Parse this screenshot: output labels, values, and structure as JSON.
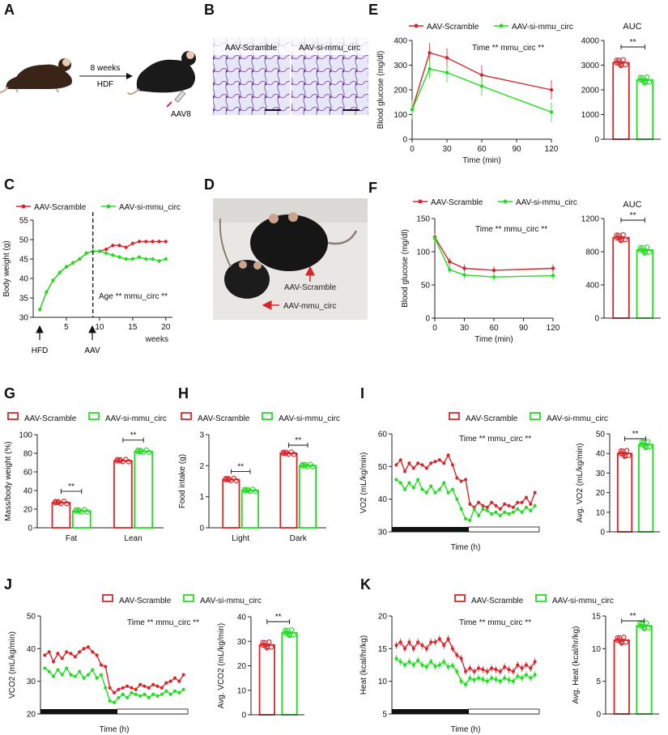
{
  "colors": {
    "scramble": "#d7262b",
    "si": "#22dd22",
    "axis": "#222222"
  },
  "panel_letters": [
    "A",
    "B",
    "C",
    "D",
    "E",
    "F",
    "G",
    "H",
    "I",
    "J",
    "K"
  ],
  "panel_a": {
    "duration": "8 weeks",
    "diet": "HDF",
    "vector": "AAV8"
  },
  "panel_b": {
    "labels": [
      "AAV-Scramble",
      "AAV-si-mmu_circ"
    ]
  },
  "panel_d": {
    "labels": [
      "AAV-Scramble",
      "AAV-mmu_circ"
    ]
  },
  "legend": {
    "scramble": "AAV-Scramble",
    "si": "AAV-si-mmu_circ"
  },
  "auc_title": "AUC",
  "stats": {
    "c": "Age ** mmu_circ **",
    "time": "Time ** mmu_circ **",
    "sig": "**"
  },
  "chart_data": [
    {
      "id": "C",
      "type": "line",
      "xlabel": "weeks",
      "ylabel": "Body weight (g)",
      "xlim": [
        0,
        21
      ],
      "ylim": [
        30,
        55
      ],
      "xticks": [
        5,
        10,
        15,
        20
      ],
      "yticks": [
        30,
        35,
        40,
        45,
        50,
        55
      ],
      "annotations": [
        "HFD",
        "AAV"
      ],
      "vline_x": 9,
      "series": [
        {
          "name": "AAV-Scramble",
          "x": [
            1,
            2,
            3,
            4,
            5,
            6,
            7,
            8,
            9,
            10,
            11,
            12,
            13,
            14,
            15,
            16,
            17,
            18,
            19,
            20
          ],
          "values": [
            32,
            36.5,
            39.5,
            41.5,
            43,
            44,
            45,
            46.5,
            47,
            47,
            47.5,
            48.5,
            48.5,
            48,
            49,
            49.5,
            49.5,
            49.5,
            49.5,
            49.5
          ]
        },
        {
          "name": "AAV-si-mmu_circ",
          "x": [
            1,
            2,
            3,
            4,
            5,
            6,
            7,
            8,
            9,
            10,
            11,
            12,
            13,
            14,
            15,
            16,
            17,
            18,
            19,
            20
          ],
          "values": [
            32,
            36.5,
            39.5,
            41.5,
            43,
            44,
            45,
            46.5,
            47,
            47,
            46.5,
            46,
            45.5,
            45,
            45,
            45.5,
            45,
            45,
            44.5,
            45
          ]
        }
      ]
    },
    {
      "id": "E",
      "type": "line",
      "xlabel": "Time (min)",
      "ylabel": "Blood glucose (mg/dl)",
      "xlim": [
        0,
        120
      ],
      "ylim": [
        0,
        400
      ],
      "xticks": [
        0,
        30,
        60,
        90,
        120
      ],
      "yticks": [
        0,
        100,
        200,
        300,
        400
      ],
      "series": [
        {
          "name": "AAV-Scramble",
          "x": [
            0,
            15,
            30,
            60,
            120
          ],
          "values": [
            120,
            350,
            330,
            260,
            200
          ]
        },
        {
          "name": "AAV-si-mmu_circ",
          "x": [
            0,
            15,
            30,
            60,
            120
          ],
          "values": [
            120,
            285,
            270,
            215,
            110
          ]
        }
      ]
    },
    {
      "id": "E-AUC",
      "type": "bar",
      "title": "AUC",
      "ylim": [
        0,
        4000
      ],
      "yticks": [
        0,
        1000,
        2000,
        3000,
        4000
      ],
      "categories": [
        "AAV-Scramble",
        "AAV-si-mmu_circ"
      ],
      "values": [
        3100,
        2400
      ]
    },
    {
      "id": "F",
      "type": "line",
      "xlabel": "Time (min)",
      "ylabel": "Blood glucose (mg/dl)",
      "xlim": [
        0,
        120
      ],
      "ylim": [
        0,
        150
      ],
      "xticks": [
        0,
        30,
        60,
        90,
        120
      ],
      "yticks": [
        0,
        50,
        100,
        150
      ],
      "series": [
        {
          "name": "AAV-Scramble",
          "x": [
            0,
            15,
            30,
            60,
            120
          ],
          "values": [
            122,
            85,
            75,
            72,
            75
          ]
        },
        {
          "name": "AAV-si-mmu_circ",
          "x": [
            0,
            15,
            30,
            60,
            120
          ],
          "values": [
            120,
            73,
            65,
            62,
            64
          ]
        }
      ]
    },
    {
      "id": "F-AUC",
      "type": "bar",
      "title": "AUC",
      "ylim": [
        0,
        1200
      ],
      "yticks": [
        0,
        400,
        800,
        1200
      ],
      "categories": [
        "AAV-Scramble",
        "AAV-si-mmu_circ"
      ],
      "values": [
        970,
        820
      ]
    },
    {
      "id": "G",
      "type": "bar",
      "ylabel": "Mass/body weight (%)",
      "ylim": [
        0,
        100
      ],
      "yticks": [
        0,
        20,
        40,
        60,
        80,
        100
      ],
      "categories": [
        "Fat",
        "Lean"
      ],
      "series": [
        {
          "name": "AAV-Scramble",
          "values": [
            27,
            72
          ]
        },
        {
          "name": "AAV-si-mmu_circ",
          "values": [
            18,
            82
          ]
        }
      ]
    },
    {
      "id": "H",
      "type": "bar",
      "ylabel": "Food intake (g)",
      "ylim": [
        0,
        3
      ],
      "yticks": [
        0,
        1,
        2,
        3
      ],
      "categories": [
        "Light",
        "Dark"
      ],
      "series": [
        {
          "name": "AAV-Scramble",
          "values": [
            1.55,
            2.4
          ]
        },
        {
          "name": "AAV-si-mmu_circ",
          "values": [
            1.2,
            2.0
          ]
        }
      ]
    },
    {
      "id": "I",
      "type": "line",
      "xlabel": "Time (h)",
      "ylabel": "VO2 (mL/kg/min)",
      "ylim": [
        30,
        60
      ],
      "yticks": [
        30,
        40,
        50,
        60
      ],
      "series": [
        {
          "name": "AAV-Scramble",
          "values": [
            50.5,
            52,
            48.5,
            51,
            49.5,
            51,
            50.5,
            49.5,
            51,
            51.5,
            52,
            51,
            53.5,
            50.5,
            46.5,
            45.5,
            46,
            38.5,
            37.5,
            39,
            38,
            37.5,
            39,
            38,
            37,
            38.5,
            38,
            37.5,
            39,
            39,
            40.5,
            38.5,
            42
          ]
        },
        {
          "name": "AAV-si-mmu_circ",
          "values": [
            46,
            45,
            43,
            45,
            43.5,
            46,
            43,
            42,
            44,
            42,
            43,
            45,
            42,
            43,
            40,
            37,
            34,
            33.5,
            37,
            35,
            37,
            36.5,
            35.5,
            36,
            35,
            36,
            35.5,
            36,
            37,
            36,
            37.5,
            36.5,
            38
          ]
        }
      ]
    },
    {
      "id": "I-avg",
      "type": "bar",
      "ylabel": "Avg. VO2 (mL/kg/min)",
      "ylim": [
        0,
        50
      ],
      "yticks": [
        0,
        10,
        20,
        30,
        40,
        50
      ],
      "categories": [
        "AAV-Scramble",
        "AAV-si-mmu_circ"
      ],
      "values": [
        40,
        44.5
      ]
    },
    {
      "id": "J",
      "type": "line",
      "xlabel": "Time (h)",
      "ylabel": "VCO2 (mL/kg/min)",
      "ylim": [
        20,
        50
      ],
      "yticks": [
        20,
        30,
        40,
        50
      ],
      "series": [
        {
          "name": "AAV-Scramble",
          "values": [
            38,
            39,
            36,
            38.5,
            37,
            39,
            38.5,
            37.5,
            39,
            40,
            40.5,
            39,
            38,
            35,
            34.5,
            28,
            26.5,
            27.5,
            28,
            28.5,
            28,
            27.5,
            29,
            28.5,
            28,
            29,
            28.5,
            28,
            29.5,
            30,
            31,
            30,
            32
          ]
        },
        {
          "name": "AAV-si-mmu_circ",
          "values": [
            34,
            33,
            31.5,
            33.5,
            32,
            34,
            32,
            31.5,
            33,
            31,
            32,
            33.5,
            31,
            32,
            28,
            24,
            23.5,
            25,
            26,
            25,
            26.5,
            26,
            25.5,
            26,
            25,
            26,
            25.5,
            26,
            27,
            26,
            27,
            26.5,
            27.5
          ]
        }
      ]
    },
    {
      "id": "J-avg",
      "type": "bar",
      "ylabel": "Avg. VCO2 (mL/kg/min)",
      "ylim": [
        0,
        40
      ],
      "yticks": [
        0,
        10,
        20,
        30,
        40
      ],
      "categories": [
        "AAV-Scramble",
        "AAV-si-mmu_circ"
      ],
      "values": [
        28.5,
        33.5
      ]
    },
    {
      "id": "K",
      "type": "line",
      "xlabel": "Time (h)",
      "ylabel": "Heat (kcal/hr/kg)",
      "ylim": [
        5,
        20
      ],
      "yticks": [
        5,
        10,
        15,
        20
      ],
      "series": [
        {
          "name": "AAV-Scramble",
          "values": [
            15.5,
            16,
            15,
            16,
            15,
            16,
            15.5,
            15,
            16,
            16,
            16.5,
            15.5,
            16.5,
            15,
            14,
            13.5,
            11.5,
            12,
            11.5,
            12,
            11.8,
            11.5,
            12,
            11.8,
            11.5,
            12.2,
            11.8,
            11.5,
            12.5,
            12,
            12.5,
            12,
            13
          ]
        },
        {
          "name": "AAV-si-mmu_circ",
          "values": [
            13.5,
            13,
            12.5,
            13,
            12.5,
            13.2,
            12.5,
            12.2,
            13,
            12.3,
            12.5,
            13,
            12.2,
            12.4,
            11.5,
            10,
            9.5,
            10.5,
            10.2,
            10.5,
            10.3,
            10,
            10.5,
            10.3,
            10,
            10.5,
            10.2,
            10,
            10.8,
            10.5,
            11,
            10.5,
            11
          ]
        }
      ]
    },
    {
      "id": "K-avg",
      "type": "bar",
      "ylabel": "Avg. Heat (kcal/hr/kg)",
      "ylim": [
        0,
        15
      ],
      "yticks": [
        0,
        5,
        10,
        15
      ],
      "categories": [
        "AAV-Scramble",
        "AAV-si-mmu_circ"
      ],
      "values": [
        11.3,
        13.5
      ]
    }
  ]
}
